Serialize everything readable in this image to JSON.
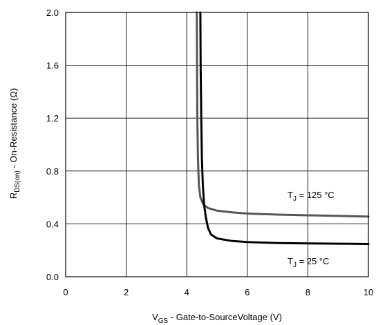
{
  "chart_data": {
    "type": "line",
    "xlabel_main": "V",
    "xlabel_sub": "GS",
    "xlabel_rest": " - Gate-to-SourceVoltage (V)",
    "ylabel_main": "R",
    "ylabel_sub": "DS(on)",
    "ylabel_rest": " - On-Resistance (Ω)",
    "xlim": [
      0,
      10
    ],
    "ylim": [
      0,
      2.0
    ],
    "x_ticks": [
      "0",
      "2",
      "4",
      "6",
      "8",
      "10"
    ],
    "y_ticks": [
      "0.0",
      "0.4",
      "0.8",
      "1.2",
      "1.6",
      "2.0"
    ],
    "grid": true,
    "series": [
      {
        "name": "TJ = 125 °C",
        "color": "#555555",
        "points": [
          [
            4.33,
            2.0
          ],
          [
            4.34,
            1.6
          ],
          [
            4.35,
            1.2
          ],
          [
            4.37,
            0.9
          ],
          [
            4.4,
            0.7
          ],
          [
            4.45,
            0.6
          ],
          [
            4.55,
            0.545
          ],
          [
            4.7,
            0.52
          ],
          [
            5.0,
            0.5
          ],
          [
            5.5,
            0.487
          ],
          [
            6.0,
            0.478
          ],
          [
            7.0,
            0.47
          ],
          [
            8.0,
            0.465
          ],
          [
            9.0,
            0.46
          ],
          [
            10.0,
            0.455
          ]
        ]
      },
      {
        "name": "TJ = 25 °C",
        "color": "#000000",
        "points": [
          [
            4.45,
            2.0
          ],
          [
            4.46,
            1.6
          ],
          [
            4.48,
            1.2
          ],
          [
            4.5,
            0.9
          ],
          [
            4.53,
            0.7
          ],
          [
            4.57,
            0.55
          ],
          [
            4.63,
            0.45
          ],
          [
            4.7,
            0.37
          ],
          [
            4.8,
            0.32
          ],
          [
            5.0,
            0.29
          ],
          [
            5.5,
            0.27
          ],
          [
            6.0,
            0.262
          ],
          [
            7.0,
            0.255
          ],
          [
            8.0,
            0.252
          ],
          [
            9.0,
            0.25
          ],
          [
            10.0,
            0.248
          ]
        ]
      }
    ],
    "annotations": [
      {
        "main": "T",
        "sub": "J",
        "rest": " = 125 °C"
      },
      {
        "main": "T",
        "sub": "J",
        "rest": " = 25 °C"
      }
    ]
  }
}
